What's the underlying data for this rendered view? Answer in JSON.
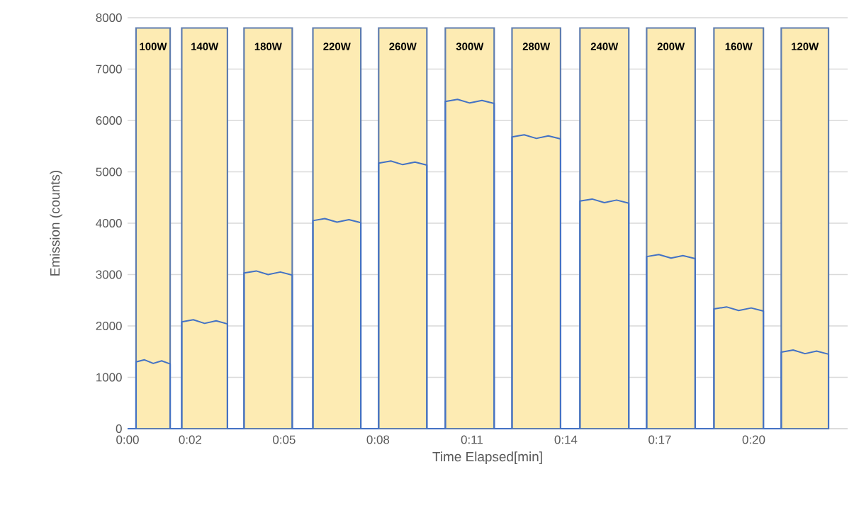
{
  "chart_data": {
    "type": "line",
    "xlabel": "Time Elapsed[min]",
    "ylabel": "Emission (counts)",
    "xlim": [
      0,
      23
    ],
    "ylim": [
      0,
      8000
    ],
    "xticks": [
      {
        "value": 0,
        "label": "0:00"
      },
      {
        "value": 2,
        "label": "0:02"
      },
      {
        "value": 5,
        "label": "0:05"
      },
      {
        "value": 8,
        "label": "0:08"
      },
      {
        "value": 11,
        "label": "0:11"
      },
      {
        "value": 14,
        "label": "0:14"
      },
      {
        "value": 17,
        "label": "0:17"
      },
      {
        "value": 20,
        "label": "0:20"
      }
    ],
    "yticks": [
      0,
      1000,
      2000,
      3000,
      4000,
      5000,
      6000,
      7000,
      8000
    ],
    "grid": "y",
    "bands": [
      {
        "axis": "x",
        "from": 0.27,
        "to": 1.36,
        "label": "100W",
        "color": "#fdebb3"
      },
      {
        "axis": "x",
        "from": 1.73,
        "to": 3.19,
        "label": "140W",
        "color": "#fdebb3"
      },
      {
        "axis": "x",
        "from": 3.72,
        "to": 5.26,
        "label": "180W",
        "color": "#fdebb3"
      },
      {
        "axis": "x",
        "from": 5.92,
        "to": 7.45,
        "label": "220W",
        "color": "#fdebb3"
      },
      {
        "axis": "x",
        "from": 8.02,
        "to": 9.56,
        "label": "260W",
        "color": "#fdebb3"
      },
      {
        "axis": "x",
        "from": 10.15,
        "to": 11.71,
        "label": "300W",
        "color": "#fdebb3"
      },
      {
        "axis": "x",
        "from": 12.28,
        "to": 13.83,
        "label": "280W",
        "color": "#fdebb3"
      },
      {
        "axis": "x",
        "from": 14.45,
        "to": 16.01,
        "label": "240W",
        "color": "#fdebb3"
      },
      {
        "axis": "x",
        "from": 16.58,
        "to": 18.13,
        "label": "200W",
        "color": "#fdebb3"
      },
      {
        "axis": "x",
        "from": 18.73,
        "to": 20.31,
        "label": "160W",
        "color": "#fdebb3"
      },
      {
        "axis": "x",
        "from": 20.88,
        "to": 22.39,
        "label": "120W",
        "color": "#fdebb3"
      }
    ],
    "series": [
      {
        "color": "#4472c4",
        "x": [
          0,
          0.27,
          0.27,
          0.54,
          0.82,
          1.09,
          1.36,
          1.36,
          1.73,
          1.73,
          2.1,
          2.46,
          2.83,
          3.19,
          3.19,
          3.72,
          3.72,
          4.11,
          4.49,
          4.88,
          5.26,
          5.26,
          5.92,
          5.92,
          6.3,
          6.69,
          7.07,
          7.45,
          7.45,
          8.02,
          8.02,
          8.41,
          8.79,
          9.18,
          9.56,
          9.56,
          10.15,
          10.15,
          10.54,
          10.93,
          11.32,
          11.71,
          11.71,
          12.28,
          12.28,
          12.67,
          13.06,
          13.44,
          13.83,
          13.83,
          14.45,
          14.45,
          14.84,
          15.23,
          15.62,
          16.01,
          16.01,
          16.58,
          16.58,
          16.97,
          17.36,
          17.74,
          18.13,
          18.13,
          18.73,
          18.73,
          19.13,
          19.52,
          19.92,
          20.31,
          20.31,
          20.88,
          20.88,
          21.26,
          21.64,
          22.01,
          22.39,
          22.39
        ],
        "values": [
          0,
          0,
          1300,
          1340,
          1270,
          1320,
          1260,
          0,
          0,
          2080,
          2120,
          2050,
          2100,
          2040,
          0,
          0,
          3030,
          3070,
          3000,
          3050,
          2990,
          0,
          0,
          4050,
          4090,
          4020,
          4070,
          4010,
          0,
          0,
          5170,
          5210,
          5140,
          5190,
          5130,
          0,
          0,
          6370,
          6410,
          6340,
          6390,
          6330,
          0,
          0,
          5680,
          5720,
          5650,
          5700,
          5640,
          0,
          0,
          4430,
          4470,
          4400,
          4450,
          4390,
          0,
          0,
          3350,
          3390,
          3320,
          3370,
          3310,
          0,
          0,
          2330,
          2370,
          2300,
          2350,
          2290,
          0,
          0,
          1490,
          1530,
          1460,
          1510,
          1450,
          0
        ]
      }
    ]
  }
}
